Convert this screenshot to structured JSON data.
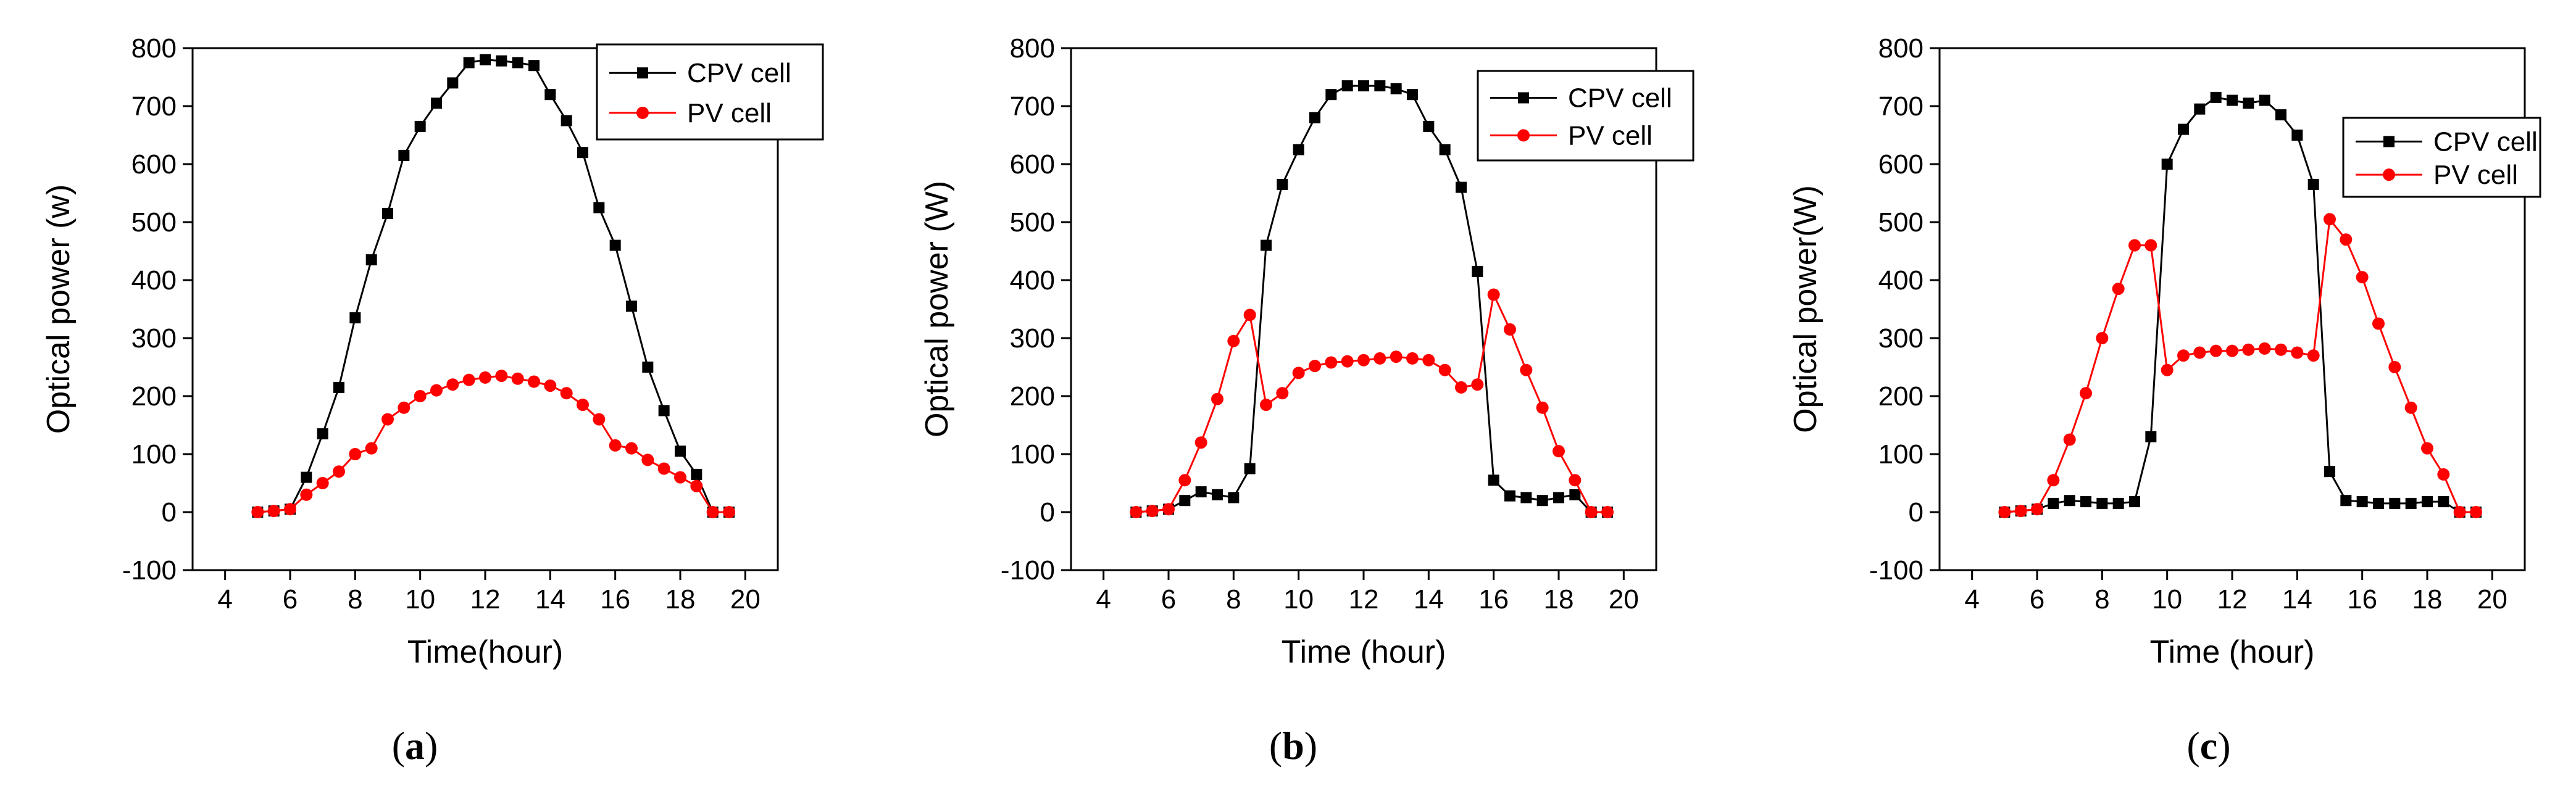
{
  "panel_labels": [
    "(a)",
    "(b)",
    "(c)"
  ],
  "chart_data": [
    {
      "type": "line",
      "panel": "a",
      "title": "",
      "xlabel": "Time(hour)",
      "ylabel": "Optical power (w)",
      "xlim": [
        3,
        21
      ],
      "ylim": [
        -100,
        800
      ],
      "xticks": [
        4,
        6,
        8,
        10,
        12,
        14,
        16,
        18,
        20
      ],
      "yticks": [
        -100,
        0,
        100,
        200,
        300,
        400,
        500,
        600,
        700,
        800
      ],
      "legend_position": "top-right",
      "series": [
        {
          "name": "CPV cell",
          "color": "#000000",
          "marker": "square",
          "x": [
            5,
            5.5,
            6,
            6.5,
            7,
            7.5,
            8,
            8.5,
            9,
            9.5,
            10,
            10.5,
            11,
            11.5,
            12,
            12.5,
            13,
            13.5,
            14,
            14.5,
            15,
            15.5,
            16,
            16.5,
            17,
            17.5,
            18,
            18.5,
            19,
            19.5
          ],
          "y": [
            0,
            2,
            5,
            60,
            135,
            215,
            335,
            435,
            515,
            615,
            665,
            705,
            740,
            775,
            780,
            778,
            775,
            770,
            720,
            675,
            620,
            525,
            460,
            355,
            250,
            175,
            105,
            65,
            0,
            0
          ]
        },
        {
          "name": "PV cell",
          "color": "#ff0000",
          "marker": "circle",
          "x": [
            5,
            5.5,
            6,
            6.5,
            7,
            7.5,
            8,
            8.5,
            9,
            9.5,
            10,
            10.5,
            11,
            11.5,
            12,
            12.5,
            13,
            13.5,
            14,
            14.5,
            15,
            15.5,
            16,
            16.5,
            17,
            17.5,
            18,
            18.5,
            19,
            19.5
          ],
          "y": [
            0,
            2,
            5,
            30,
            50,
            70,
            100,
            110,
            160,
            180,
            200,
            210,
            220,
            228,
            232,
            235,
            230,
            225,
            218,
            205,
            185,
            160,
            115,
            110,
            90,
            75,
            60,
            45,
            0,
            0
          ]
        }
      ]
    },
    {
      "type": "line",
      "panel": "b",
      "title": "",
      "xlabel": "Time (hour)",
      "ylabel": "Optical power (W)",
      "xlim": [
        3,
        21
      ],
      "ylim": [
        -100,
        800
      ],
      "xticks": [
        4,
        6,
        8,
        10,
        12,
        14,
        16,
        18,
        20
      ],
      "yticks": [
        -100,
        0,
        100,
        200,
        300,
        400,
        500,
        600,
        700,
        800
      ],
      "legend_position": "top-right",
      "series": [
        {
          "name": "CPV cell",
          "color": "#000000",
          "marker": "square",
          "x": [
            5,
            5.5,
            6,
            6.5,
            7,
            7.5,
            8,
            8.5,
            9,
            9.5,
            10,
            10.5,
            11,
            11.5,
            12,
            12.5,
            13,
            13.5,
            14,
            14.5,
            15,
            15.5,
            16,
            16.5,
            17,
            17.5,
            18,
            18.5,
            19,
            19.5
          ],
          "y": [
            0,
            2,
            5,
            20,
            35,
            30,
            25,
            75,
            460,
            565,
            625,
            680,
            720,
            735,
            735,
            735,
            730,
            720,
            665,
            625,
            560,
            415,
            55,
            28,
            25,
            20,
            25,
            30,
            0,
            0
          ]
        },
        {
          "name": "PV cell",
          "color": "#ff0000",
          "marker": "circle",
          "x": [
            5,
            5.5,
            6,
            6.5,
            7,
            7.5,
            8,
            8.5,
            9,
            9.5,
            10,
            10.5,
            11,
            11.5,
            12,
            12.5,
            13,
            13.5,
            14,
            14.5,
            15,
            15.5,
            16,
            16.5,
            17,
            17.5,
            18,
            18.5,
            19,
            19.5
          ],
          "y": [
            0,
            2,
            5,
            55,
            120,
            195,
            295,
            340,
            185,
            205,
            240,
            252,
            258,
            260,
            262,
            265,
            268,
            265,
            262,
            245,
            215,
            220,
            375,
            315,
            245,
            180,
            105,
            55,
            0,
            0
          ]
        }
      ]
    },
    {
      "type": "line",
      "panel": "c",
      "title": "",
      "xlabel": "Time (hour)",
      "ylabel": "Optical power(W)",
      "xlim": [
        3,
        21
      ],
      "ylim": [
        -100,
        800
      ],
      "xticks": [
        4,
        6,
        8,
        10,
        12,
        14,
        16,
        18,
        20
      ],
      "yticks": [
        -100,
        0,
        100,
        200,
        300,
        400,
        500,
        600,
        700,
        800
      ],
      "legend_position": "upper-right, below top",
      "series": [
        {
          "name": "CPV cell",
          "color": "#000000",
          "marker": "square",
          "x": [
            5,
            5.5,
            6,
            6.5,
            7,
            7.5,
            8,
            8.5,
            9,
            9.5,
            10,
            10.5,
            11,
            11.5,
            12,
            12.5,
            13,
            13.5,
            14,
            14.5,
            15,
            15.5,
            16,
            16.5,
            17,
            17.5,
            18,
            18.5,
            19,
            19.5
          ],
          "y": [
            0,
            2,
            5,
            15,
            20,
            18,
            15,
            15,
            18,
            130,
            600,
            660,
            695,
            715,
            710,
            705,
            710,
            685,
            650,
            565,
            70,
            20,
            18,
            15,
            15,
            15,
            18,
            18,
            0,
            0
          ]
        },
        {
          "name": "PV cell",
          "color": "#ff0000",
          "marker": "circle",
          "x": [
            5,
            5.5,
            6,
            6.5,
            7,
            7.5,
            8,
            8.5,
            9,
            9.5,
            10,
            10.5,
            11,
            11.5,
            12,
            12.5,
            13,
            13.5,
            14,
            14.5,
            15,
            15.5,
            16,
            16.5,
            17,
            17.5,
            18,
            18.5,
            19,
            19.5
          ],
          "y": [
            0,
            2,
            5,
            55,
            125,
            205,
            300,
            385,
            460,
            460,
            245,
            270,
            275,
            278,
            278,
            280,
            282,
            280,
            275,
            270,
            505,
            470,
            405,
            325,
            250,
            180,
            110,
            65,
            0,
            0
          ]
        }
      ]
    }
  ]
}
